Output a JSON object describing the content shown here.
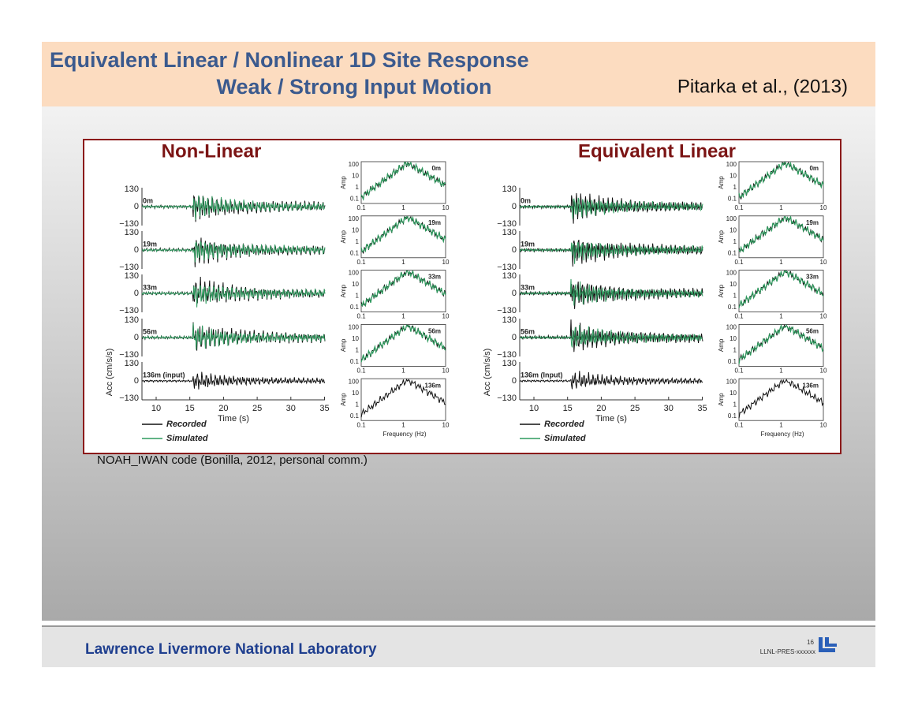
{
  "header": {
    "title_line1": "Equivalent Linear / Nonlinear  1D Site Response",
    "title_line2": "Weak / Strong Input Motion",
    "citation": "Pitarka et al., (2013)"
  },
  "figure": {
    "panels": [
      {
        "title": "Non-Linear",
        "depth_labels": [
          "0m",
          "19m",
          "33m",
          "56m",
          "136m (input)"
        ],
        "spectrum_labels": [
          "0m",
          "19m",
          "33m",
          "56m",
          "136m"
        ]
      },
      {
        "title": "Equivalent Linear",
        "depth_labels": [
          "0m",
          "19m",
          "33m",
          "56m",
          "136m (Input)"
        ],
        "spectrum_labels": [
          "0m",
          "19m",
          "33m",
          "56m",
          "136m"
        ]
      }
    ],
    "acc_axis": {
      "label": "Acc (cm/s/s)",
      "ticks": [
        "130",
        "0",
        "−130"
      ]
    },
    "time_axis": {
      "label": "Time (s)",
      "ticks": [
        "10",
        "15",
        "20",
        "25",
        "30",
        "35"
      ]
    },
    "amp_axis": {
      "label": "Amp",
      "ticks": [
        "100",
        "10",
        "1",
        "0.1"
      ]
    },
    "freq_axis": {
      "label": "Frequency (Hz)",
      "ticks": [
        "0.1",
        "1",
        "10"
      ]
    },
    "legend": [
      {
        "name": "Recorded",
        "color": "#111111"
      },
      {
        "name": "Simulated",
        "color": "#2e9a5e"
      }
    ]
  },
  "caption": "NOAH_IWAN code (Bonilla, 2012, personal comm.)",
  "footer": {
    "lab": "Lawrence Livermore National Laboratory",
    "page": "16",
    "code": "LLNL-PRES-xxxxxx"
  }
}
